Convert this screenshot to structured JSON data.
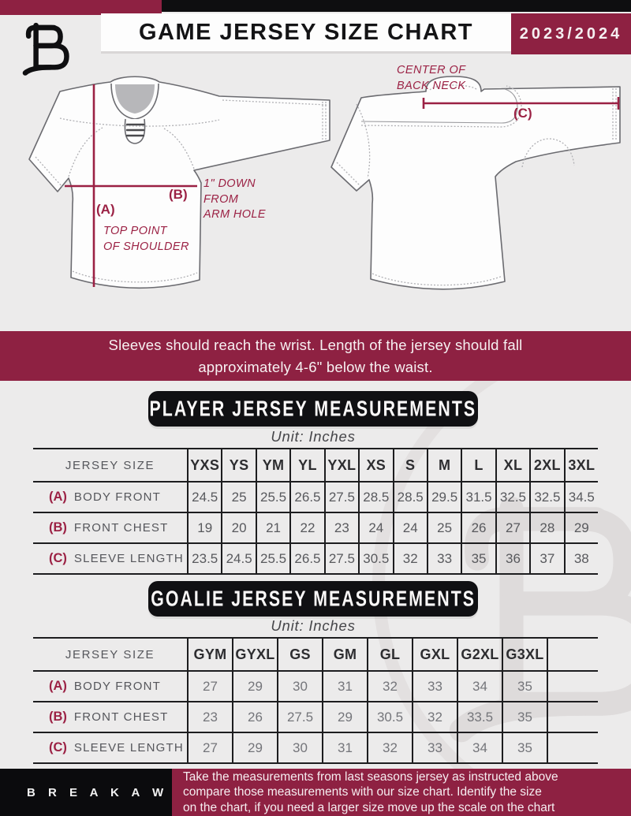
{
  "header": {
    "title": "GAME JERSEY SIZE CHART",
    "season": "2023/2024"
  },
  "diagram": {
    "front": {
      "label_a": "(A)",
      "note_a": "TOP POINT\nOF SHOULDER",
      "label_b": "(B)",
      "note_b": "1\" DOWN\nFROM\nARM HOLE"
    },
    "back": {
      "label_c": "(C)",
      "note_c": "CENTER OF\nBACK NECK"
    }
  },
  "banner": {
    "line1": "Sleeves should reach the wrist. Length of the jersey should fall",
    "line2": "approximately 4-6\" below the waist."
  },
  "player_section": {
    "title": "PLAYER JERSEY MEASUREMENTS",
    "unit": "Unit: Inches",
    "table": {
      "corner_label": "JERSEY SIZE",
      "columns": [
        "YXS",
        "YS",
        "YM",
        "YL",
        "YXL",
        "XS",
        "S",
        "M",
        "L",
        "XL",
        "2XL",
        "3XL"
      ],
      "rows": [
        {
          "key": "(A)",
          "label": "BODY FRONT",
          "values": [
            "24.5",
            "25",
            "25.5",
            "26.5",
            "27.5",
            "28.5",
            "28.5",
            "29.5",
            "31.5",
            "32.5",
            "32.5",
            "34.5"
          ]
        },
        {
          "key": "(B)",
          "label": "FRONT CHEST",
          "values": [
            "19",
            "20",
            "21",
            "22",
            "23",
            "24",
            "24",
            "25",
            "26",
            "27",
            "28",
            "29"
          ]
        },
        {
          "key": "(C)",
          "label": "SLEEVE LENGTH",
          "values": [
            "23.5",
            "24.5",
            "25.5",
            "26.5",
            "27.5",
            "30.5",
            "32",
            "33",
            "35",
            "36",
            "37",
            "38"
          ]
        }
      ]
    }
  },
  "goalie_section": {
    "title": "GOALIE JERSEY MEASUREMENTS",
    "unit": "Unit: Inches",
    "table": {
      "corner_label": "JERSEY SIZE",
      "trailing_empty": true,
      "columns": [
        "GYM",
        "GYXL",
        "GS",
        "GM",
        "GL",
        "GXL",
        "G2XL",
        "G3XL"
      ],
      "rows": [
        {
          "key": "(A)",
          "label": "BODY FRONT",
          "values": [
            "27",
            "29",
            "30",
            "31",
            "32",
            "33",
            "34",
            "35"
          ]
        },
        {
          "key": "(B)",
          "label": "FRONT CHEST",
          "values": [
            "23",
            "26",
            "27.5",
            "29",
            "30.5",
            "32",
            "33.5",
            "35"
          ]
        },
        {
          "key": "(C)",
          "label": "SLEEVE LENGTH",
          "values": [
            "27",
            "29",
            "30",
            "31",
            "32",
            "33",
            "34",
            "35"
          ]
        }
      ]
    }
  },
  "footer": {
    "brand": "B R E A K A W A Y",
    "text": "Take the measurements from last seasons jersey as instructed above\ncompare those measurements  with our size chart. Identify the size\non the chart, if you need a larger size move up the scale on the chart"
  },
  "colors": {
    "maroon": "#8E2142",
    "annotation_maroon": "#9B2144",
    "black": "#0E0E10",
    "background": "#ECEBEB"
  }
}
